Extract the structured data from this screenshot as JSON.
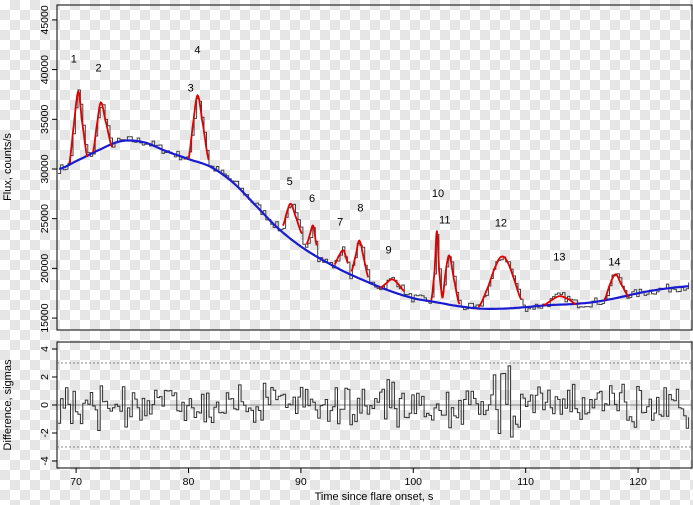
{
  "chart_data": [
    {
      "type": "line",
      "panel": "top",
      "title": "",
      "xlabel": "",
      "ylabel": "Flux, counts/s",
      "xlim": [
        68.3,
        124.8
      ],
      "ylim": [
        13800,
        46500
      ],
      "yticks": [
        15000,
        20000,
        25000,
        30000,
        35000,
        40000,
        45000
      ],
      "ytick_labels": [
        "15000",
        "20000",
        "25000",
        "30000",
        "35000",
        "40000",
        "45000"
      ],
      "grid": false,
      "legend": "none",
      "colors": {
        "observed": "#404040",
        "background": "#1a1ad0",
        "peaks": "#e00000"
      },
      "background_fit": {
        "name": "",
        "x": [
          68.5,
          70,
          72,
          74,
          76,
          78,
          80,
          82,
          84,
          86,
          88,
          90,
          92,
          94,
          96,
          98,
          100,
          102,
          104,
          106,
          108,
          110,
          112,
          114,
          116,
          118,
          120,
          122,
          124.5
        ],
        "y": [
          30000,
          30800,
          31900,
          32800,
          32700,
          31800,
          31000,
          30200,
          28600,
          26300,
          24000,
          22200,
          20800,
          19600,
          18600,
          17700,
          17000,
          16600,
          16200,
          15950,
          15950,
          16100,
          16300,
          16400,
          16600,
          17000,
          17500,
          17900,
          18200
        ]
      },
      "peak_fits": [
        {
          "label": "1",
          "x": [
            69.4,
            69.8,
            70.2,
            70.5,
            71.0
          ],
          "y": [
            30600,
            34500,
            37800,
            35000,
            31200
          ]
        },
        {
          "label": "2",
          "x": [
            71.5,
            71.9,
            72.2,
            72.6,
            73.2
          ],
          "y": [
            31700,
            34800,
            36700,
            34900,
            32200
          ]
        },
        {
          "label": "3",
          "x": [
            80.0,
            80.4,
            80.8,
            81.2,
            81.8
          ],
          "y": [
            31000,
            34500,
            37400,
            35000,
            30900
          ]
        },
        {
          "label": "5",
          "x": [
            88.4,
            88.8,
            89.1,
            89.5,
            90.1
          ],
          "y": [
            24300,
            25800,
            26500,
            25300,
            23500
          ]
        },
        {
          "label": "6",
          "x": [
            90.5,
            90.8,
            91.1,
            91.4
          ],
          "y": [
            22400,
            23400,
            24300,
            22300
          ]
        },
        {
          "label": "7",
          "x": [
            93.0,
            93.4,
            93.8,
            94.2
          ],
          "y": [
            20400,
            21300,
            21800,
            20500
          ]
        },
        {
          "label": "8",
          "x": [
            94.5,
            94.9,
            95.2,
            95.6,
            96.0
          ],
          "y": [
            19700,
            21400,
            22800,
            21000,
            19100
          ]
        },
        {
          "label": "9",
          "x": [
            97.0,
            97.6,
            98.1,
            98.6,
            99.2
          ],
          "y": [
            18000,
            18500,
            18900,
            18500,
            17700
          ]
        },
        {
          "label": "10",
          "x": [
            101.6,
            101.9,
            102.1,
            102.3,
            102.6
          ],
          "y": [
            16800,
            19800,
            23800,
            19800,
            17000
          ]
        },
        {
          "label": "11",
          "x": [
            102.6,
            102.9,
            103.2,
            103.6,
            104.1
          ],
          "y": [
            17000,
            19800,
            21300,
            19000,
            16400
          ]
        },
        {
          "label": "12",
          "x": [
            105.8,
            106.6,
            107.4,
            107.9,
            108.4,
            109.0,
            109.6
          ],
          "y": [
            16100,
            18000,
            20400,
            21200,
            20600,
            18800,
            16900
          ]
        },
        {
          "label": "13",
          "x": [
            111.6,
            112.3,
            113.0,
            113.8,
            114.5
          ],
          "y": [
            16300,
            16800,
            17200,
            16900,
            16400
          ]
        },
        {
          "label": "14",
          "x": [
            117.0,
            117.5,
            118.0,
            118.5,
            119.2
          ],
          "y": [
            16800,
            18400,
            19400,
            18400,
            17100
          ]
        }
      ],
      "annotations": [
        {
          "text": "1",
          "x": 69.8,
          "y": 40700
        },
        {
          "text": "2",
          "x": 72.0,
          "y": 39800
        },
        {
          "text": "3",
          "x": 80.2,
          "y": 37800
        },
        {
          "text": "4",
          "x": 80.8,
          "y": 41600
        },
        {
          "text": "5",
          "x": 89.0,
          "y": 28400
        },
        {
          "text": "6",
          "x": 91.0,
          "y": 26700
        },
        {
          "text": "7",
          "x": 93.5,
          "y": 24300
        },
        {
          "text": "8",
          "x": 95.3,
          "y": 25700
        },
        {
          "text": "9",
          "x": 97.8,
          "y": 21500
        },
        {
          "text": "10",
          "x": 102.2,
          "y": 27200
        },
        {
          "text": "11",
          "x": 102.8,
          "y": 24500
        },
        {
          "text": "12",
          "x": 107.8,
          "y": 24200
        },
        {
          "text": "13",
          "x": 113.0,
          "y": 20800
        },
        {
          "text": "14",
          "x": 117.9,
          "y": 20300
        }
      ]
    },
    {
      "type": "line",
      "panel": "bottom",
      "title": "",
      "xlabel": "Time since flare onset, s",
      "ylabel": "Difference, sigmas",
      "xlim": [
        68.3,
        124.8
      ],
      "ylim": [
        -4.5,
        4.5
      ],
      "xticks": [
        70,
        80,
        90,
        100,
        110,
        120
      ],
      "xtick_labels": [
        "70",
        "80",
        "90",
        "100",
        "110",
        "120"
      ],
      "yticks": [
        -4,
        -2,
        0,
        2,
        4
      ],
      "ytick_labels": [
        "-4",
        "-2",
        "0",
        "2",
        "4"
      ],
      "reference_lines": [
        -3,
        0,
        3
      ],
      "grid": false,
      "legend": "none",
      "colors": {
        "residual": "#303030",
        "reference": "#606060"
      }
    }
  ]
}
